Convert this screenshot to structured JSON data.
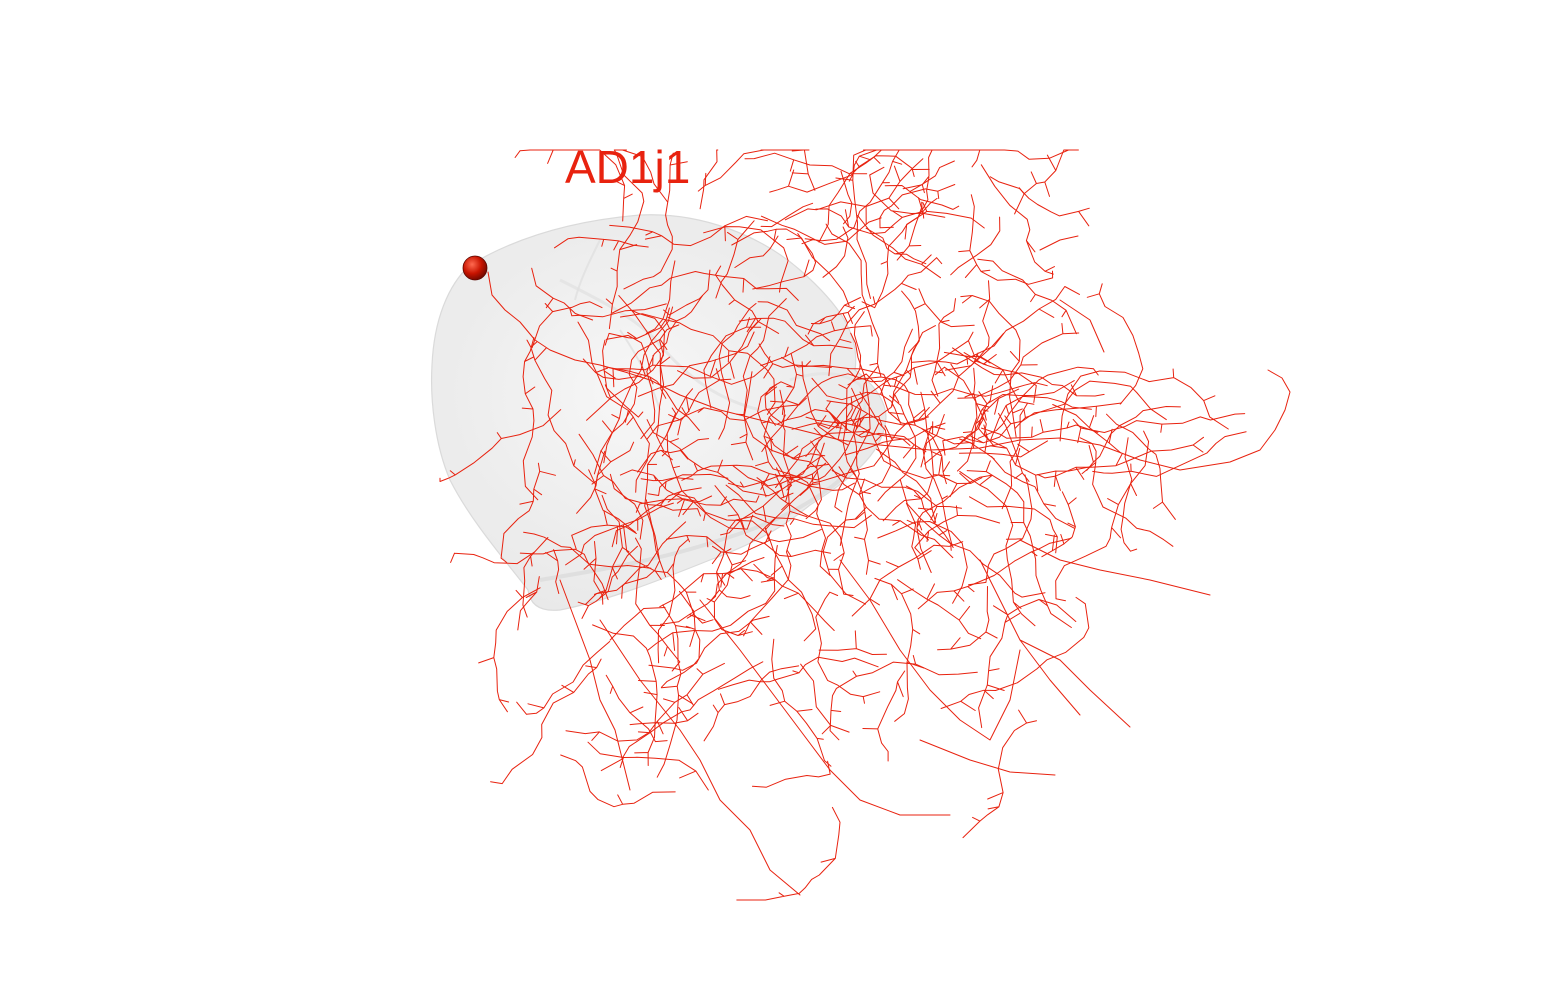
{
  "neuron": {
    "name": "AD1j1",
    "color": "#e8220f",
    "soma_color": "#c81400"
  },
  "neuropil": {
    "fill_color": "#efefef",
    "edge_color": "#d8d8d8"
  },
  "background_color": "#ffffff"
}
